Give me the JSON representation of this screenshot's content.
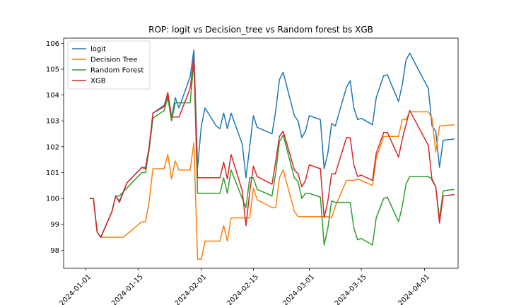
{
  "chart_data": {
    "type": "line",
    "title": "ROP: logit vs Decision_tree vs Random forest bs XGB",
    "xlabel": "",
    "ylabel": "",
    "xlim": [
      "2023-12-26",
      "2024-04-10"
    ],
    "ylim": [
      97.3,
      106.2
    ],
    "x_ticks": [
      "2024-01-01",
      "2024-01-15",
      "2024-02-01",
      "2024-02-15",
      "2024-03-01",
      "2024-03-15",
      "2024-04-01"
    ],
    "y_ticks": [
      98,
      99,
      100,
      101,
      102,
      103,
      104,
      105,
      106
    ],
    "grid": false,
    "legend_position": "top-left",
    "series": [
      {
        "name": "logit",
        "color": "#1f77b4",
        "points": [
          [
            "2024-01-02",
            100.0
          ],
          [
            "2024-01-03",
            100.0
          ],
          [
            "2024-01-04",
            98.7
          ],
          [
            "2024-01-05",
            98.5
          ],
          [
            "2024-01-08",
            99.5
          ],
          [
            "2024-01-09",
            100.1
          ],
          [
            "2024-01-10",
            99.9
          ],
          [
            "2024-01-12",
            100.6
          ],
          [
            "2024-01-16",
            101.2
          ],
          [
            "2024-01-17",
            101.2
          ],
          [
            "2024-01-18",
            102.0
          ],
          [
            "2024-01-19",
            103.3
          ],
          [
            "2024-01-22",
            103.6
          ],
          [
            "2024-01-23",
            104.0
          ],
          [
            "2024-01-24",
            103.1
          ],
          [
            "2024-01-25",
            103.9
          ],
          [
            "2024-01-26",
            103.5
          ],
          [
            "2024-01-29",
            104.7
          ],
          [
            "2024-01-30",
            105.75
          ],
          [
            "2024-01-31",
            101.2
          ],
          [
            "2024-02-01",
            102.8
          ],
          [
            "2024-02-02",
            103.5
          ],
          [
            "2024-02-05",
            102.8
          ],
          [
            "2024-02-06",
            102.7
          ],
          [
            "2024-02-07",
            103.3
          ],
          [
            "2024-02-08",
            102.7
          ],
          [
            "2024-02-09",
            103.3
          ],
          [
            "2024-02-12",
            102.1
          ],
          [
            "2024-02-13",
            100.8
          ],
          [
            "2024-02-14",
            102.0
          ],
          [
            "2024-02-15",
            103.2
          ],
          [
            "2024-02-16",
            102.75
          ],
          [
            "2024-02-20",
            102.5
          ],
          [
            "2024-02-21",
            103.4
          ],
          [
            "2024-02-22",
            104.6
          ],
          [
            "2024-02-23",
            104.88
          ],
          [
            "2024-02-26",
            103.2
          ],
          [
            "2024-02-27",
            103.0
          ],
          [
            "2024-02-28",
            102.35
          ],
          [
            "2024-02-29",
            102.6
          ],
          [
            "2024-03-01",
            103.2
          ],
          [
            "2024-03-04",
            103.05
          ],
          [
            "2024-03-05",
            101.15
          ],
          [
            "2024-03-06",
            101.75
          ],
          [
            "2024-03-07",
            102.9
          ],
          [
            "2024-03-08",
            102.8
          ],
          [
            "2024-03-11",
            104.3
          ],
          [
            "2024-03-12",
            104.55
          ],
          [
            "2024-03-13",
            103.5
          ],
          [
            "2024-03-14",
            103.05
          ],
          [
            "2024-03-15",
            103.1
          ],
          [
            "2024-03-18",
            102.85
          ],
          [
            "2024-03-19",
            103.9
          ],
          [
            "2024-03-21",
            104.75
          ],
          [
            "2024-03-22",
            104.78
          ],
          [
            "2024-03-25",
            103.75
          ],
          [
            "2024-03-26",
            104.4
          ],
          [
            "2024-03-27",
            105.35
          ],
          [
            "2024-03-28",
            105.62
          ],
          [
            "2024-04-02",
            104.25
          ],
          [
            "2024-04-03",
            102.8
          ],
          [
            "2024-04-04",
            102.6
          ],
          [
            "2024-04-05",
            101.2
          ],
          [
            "2024-04-06",
            102.25
          ],
          [
            "2024-04-09",
            102.3
          ]
        ]
      },
      {
        "name": "Decision Tree",
        "color": "#ff7f0e",
        "points": [
          [
            "2024-01-02",
            100.0
          ],
          [
            "2024-01-03",
            100.0
          ],
          [
            "2024-01-04",
            98.7
          ],
          [
            "2024-01-05",
            98.5
          ],
          [
            "2024-01-11",
            98.5
          ],
          [
            "2024-01-16",
            99.1
          ],
          [
            "2024-01-17",
            99.1
          ],
          [
            "2024-01-18",
            99.9
          ],
          [
            "2024-01-19",
            101.15
          ],
          [
            "2024-01-22",
            101.15
          ],
          [
            "2024-01-23",
            101.7
          ],
          [
            "2024-01-24",
            100.75
          ],
          [
            "2024-01-25",
            101.45
          ],
          [
            "2024-01-26",
            101.1
          ],
          [
            "2024-01-29",
            101.1
          ],
          [
            "2024-01-30",
            102.15
          ],
          [
            "2024-01-31",
            97.65
          ],
          [
            "2024-02-01",
            97.65
          ],
          [
            "2024-02-02",
            98.35
          ],
          [
            "2024-02-06",
            98.35
          ],
          [
            "2024-02-07",
            98.95
          ],
          [
            "2024-02-08",
            98.35
          ],
          [
            "2024-02-09",
            99.25
          ],
          [
            "2024-02-13",
            99.25
          ],
          [
            "2024-02-14",
            99.25
          ],
          [
            "2024-02-15",
            100.4
          ],
          [
            "2024-02-16",
            99.95
          ],
          [
            "2024-02-20",
            99.65
          ],
          [
            "2024-02-21",
            99.65
          ],
          [
            "2024-02-22",
            100.8
          ],
          [
            "2024-02-23",
            101.1
          ],
          [
            "2024-02-26",
            99.5
          ],
          [
            "2024-02-27",
            99.3
          ],
          [
            "2024-03-04",
            99.3
          ],
          [
            "2024-03-05",
            99.3
          ],
          [
            "2024-03-06",
            99.3
          ],
          [
            "2024-03-07",
            99.25
          ],
          [
            "2024-03-08",
            99.7
          ],
          [
            "2024-03-11",
            100.7
          ],
          [
            "2024-03-12",
            100.7
          ],
          [
            "2024-03-13",
            100.7
          ],
          [
            "2024-03-14",
            100.75
          ],
          [
            "2024-03-15",
            100.7
          ],
          [
            "2024-03-18",
            100.5
          ],
          [
            "2024-03-19",
            101.55
          ],
          [
            "2024-03-21",
            102.4
          ],
          [
            "2024-03-25",
            102.4
          ],
          [
            "2024-03-26",
            103.05
          ],
          [
            "2024-03-27",
            103.05
          ],
          [
            "2024-03-28",
            103.35
          ],
          [
            "2024-04-02",
            103.35
          ],
          [
            "2024-04-03",
            103.1
          ],
          [
            "2024-04-04",
            101.8
          ],
          [
            "2024-04-05",
            102.8
          ],
          [
            "2024-04-09",
            102.85
          ]
        ]
      },
      {
        "name": "Random Forest",
        "color": "#2ca02c",
        "points": [
          [
            "2024-01-02",
            100.0
          ],
          [
            "2024-01-03",
            100.0
          ],
          [
            "2024-01-04",
            98.7
          ],
          [
            "2024-01-05",
            98.5
          ],
          [
            "2024-01-08",
            99.5
          ],
          [
            "2024-01-09",
            100.1
          ],
          [
            "2024-01-10",
            100.1
          ],
          [
            "2024-01-12",
            100.4
          ],
          [
            "2024-01-16",
            101.0
          ],
          [
            "2024-01-17",
            101.0
          ],
          [
            "2024-01-18",
            101.9
          ],
          [
            "2024-01-19",
            103.1
          ],
          [
            "2024-01-22",
            103.4
          ],
          [
            "2024-01-23",
            103.9
          ],
          [
            "2024-01-24",
            103.0
          ],
          [
            "2024-01-25",
            103.7
          ],
          [
            "2024-01-29",
            103.7
          ],
          [
            "2024-01-30",
            105.3
          ],
          [
            "2024-01-31",
            100.2
          ],
          [
            "2024-02-06",
            100.2
          ],
          [
            "2024-02-07",
            100.8
          ],
          [
            "2024-02-08",
            100.2
          ],
          [
            "2024-02-09",
            101.1
          ],
          [
            "2024-02-12",
            100.0
          ],
          [
            "2024-02-13",
            99.65
          ],
          [
            "2024-02-14",
            100.8
          ],
          [
            "2024-02-15",
            100.8
          ],
          [
            "2024-02-16",
            100.35
          ],
          [
            "2024-02-20",
            100.1
          ],
          [
            "2024-02-21",
            101.0
          ],
          [
            "2024-02-22",
            102.2
          ],
          [
            "2024-02-23",
            102.45
          ],
          [
            "2024-02-26",
            100.8
          ],
          [
            "2024-02-27",
            100.65
          ],
          [
            "2024-02-28",
            100.0
          ],
          [
            "2024-02-29",
            100.2
          ],
          [
            "2024-03-01",
            100.2
          ],
          [
            "2024-03-04",
            100.05
          ],
          [
            "2024-03-05",
            98.2
          ],
          [
            "2024-03-06",
            98.85
          ],
          [
            "2024-03-07",
            99.9
          ],
          [
            "2024-03-08",
            99.85
          ],
          [
            "2024-03-11",
            99.85
          ],
          [
            "2024-03-12",
            99.85
          ],
          [
            "2024-03-13",
            98.85
          ],
          [
            "2024-03-14",
            98.4
          ],
          [
            "2024-03-15",
            98.45
          ],
          [
            "2024-03-18",
            98.2
          ],
          [
            "2024-03-19",
            99.25
          ],
          [
            "2024-03-21",
            100.0
          ],
          [
            "2024-03-22",
            100.05
          ],
          [
            "2024-03-25",
            99.1
          ],
          [
            "2024-03-26",
            99.7
          ],
          [
            "2024-03-27",
            100.55
          ],
          [
            "2024-03-28",
            100.85
          ],
          [
            "2024-04-02",
            100.85
          ],
          [
            "2024-04-03",
            100.75
          ],
          [
            "2024-04-04",
            100.45
          ],
          [
            "2024-04-05",
            99.2
          ],
          [
            "2024-04-06",
            100.3
          ],
          [
            "2024-04-09",
            100.35
          ]
        ]
      },
      {
        "name": "XGB",
        "color": "#d62728",
        "points": [
          [
            "2024-01-02",
            100.0
          ],
          [
            "2024-01-03",
            100.0
          ],
          [
            "2024-01-04",
            98.7
          ],
          [
            "2024-01-05",
            98.5
          ],
          [
            "2024-01-08",
            99.5
          ],
          [
            "2024-01-09",
            100.1
          ],
          [
            "2024-01-10",
            99.85
          ],
          [
            "2024-01-12",
            100.6
          ],
          [
            "2024-01-16",
            101.2
          ],
          [
            "2024-01-17",
            101.15
          ],
          [
            "2024-01-18",
            102.0
          ],
          [
            "2024-01-19",
            103.3
          ],
          [
            "2024-01-22",
            103.55
          ],
          [
            "2024-01-23",
            104.1
          ],
          [
            "2024-01-24",
            103.15
          ],
          [
            "2024-01-25",
            103.15
          ],
          [
            "2024-01-26",
            103.15
          ],
          [
            "2024-01-29",
            104.25
          ],
          [
            "2024-01-30",
            105.45
          ],
          [
            "2024-01-31",
            100.8
          ],
          [
            "2024-02-06",
            100.8
          ],
          [
            "2024-02-07",
            101.4
          ],
          [
            "2024-02-08",
            100.75
          ],
          [
            "2024-02-09",
            101.7
          ],
          [
            "2024-02-12",
            100.3
          ],
          [
            "2024-02-13",
            98.95
          ],
          [
            "2024-02-14",
            100.25
          ],
          [
            "2024-02-15",
            101.25
          ],
          [
            "2024-02-16",
            100.85
          ],
          [
            "2024-02-20",
            100.55
          ],
          [
            "2024-02-21",
            101.45
          ],
          [
            "2024-02-22",
            102.4
          ],
          [
            "2024-02-23",
            102.6
          ],
          [
            "2024-02-26",
            101.1
          ],
          [
            "2024-02-27",
            100.95
          ],
          [
            "2024-02-28",
            100.45
          ],
          [
            "2024-02-29",
            100.7
          ],
          [
            "2024-03-01",
            101.3
          ],
          [
            "2024-03-04",
            101.15
          ],
          [
            "2024-03-05",
            99.25
          ],
          [
            "2024-03-06",
            99.9
          ],
          [
            "2024-03-07",
            100.95
          ],
          [
            "2024-03-08",
            100.95
          ],
          [
            "2024-03-11",
            102.35
          ],
          [
            "2024-03-12",
            102.35
          ],
          [
            "2024-03-13",
            101.3
          ],
          [
            "2024-03-14",
            100.85
          ],
          [
            "2024-03-15",
            100.9
          ],
          [
            "2024-03-18",
            100.7
          ],
          [
            "2024-03-19",
            101.75
          ],
          [
            "2024-03-21",
            102.55
          ],
          [
            "2024-03-22",
            102.55
          ],
          [
            "2024-03-25",
            101.6
          ],
          [
            "2024-03-26",
            102.3
          ],
          [
            "2024-03-28",
            103.4
          ],
          [
            "2024-04-02",
            102.05
          ],
          [
            "2024-04-03",
            100.7
          ],
          [
            "2024-04-04",
            100.45
          ],
          [
            "2024-04-05",
            99.05
          ],
          [
            "2024-04-06",
            100.1
          ],
          [
            "2024-04-09",
            100.15
          ]
        ]
      }
    ]
  }
}
